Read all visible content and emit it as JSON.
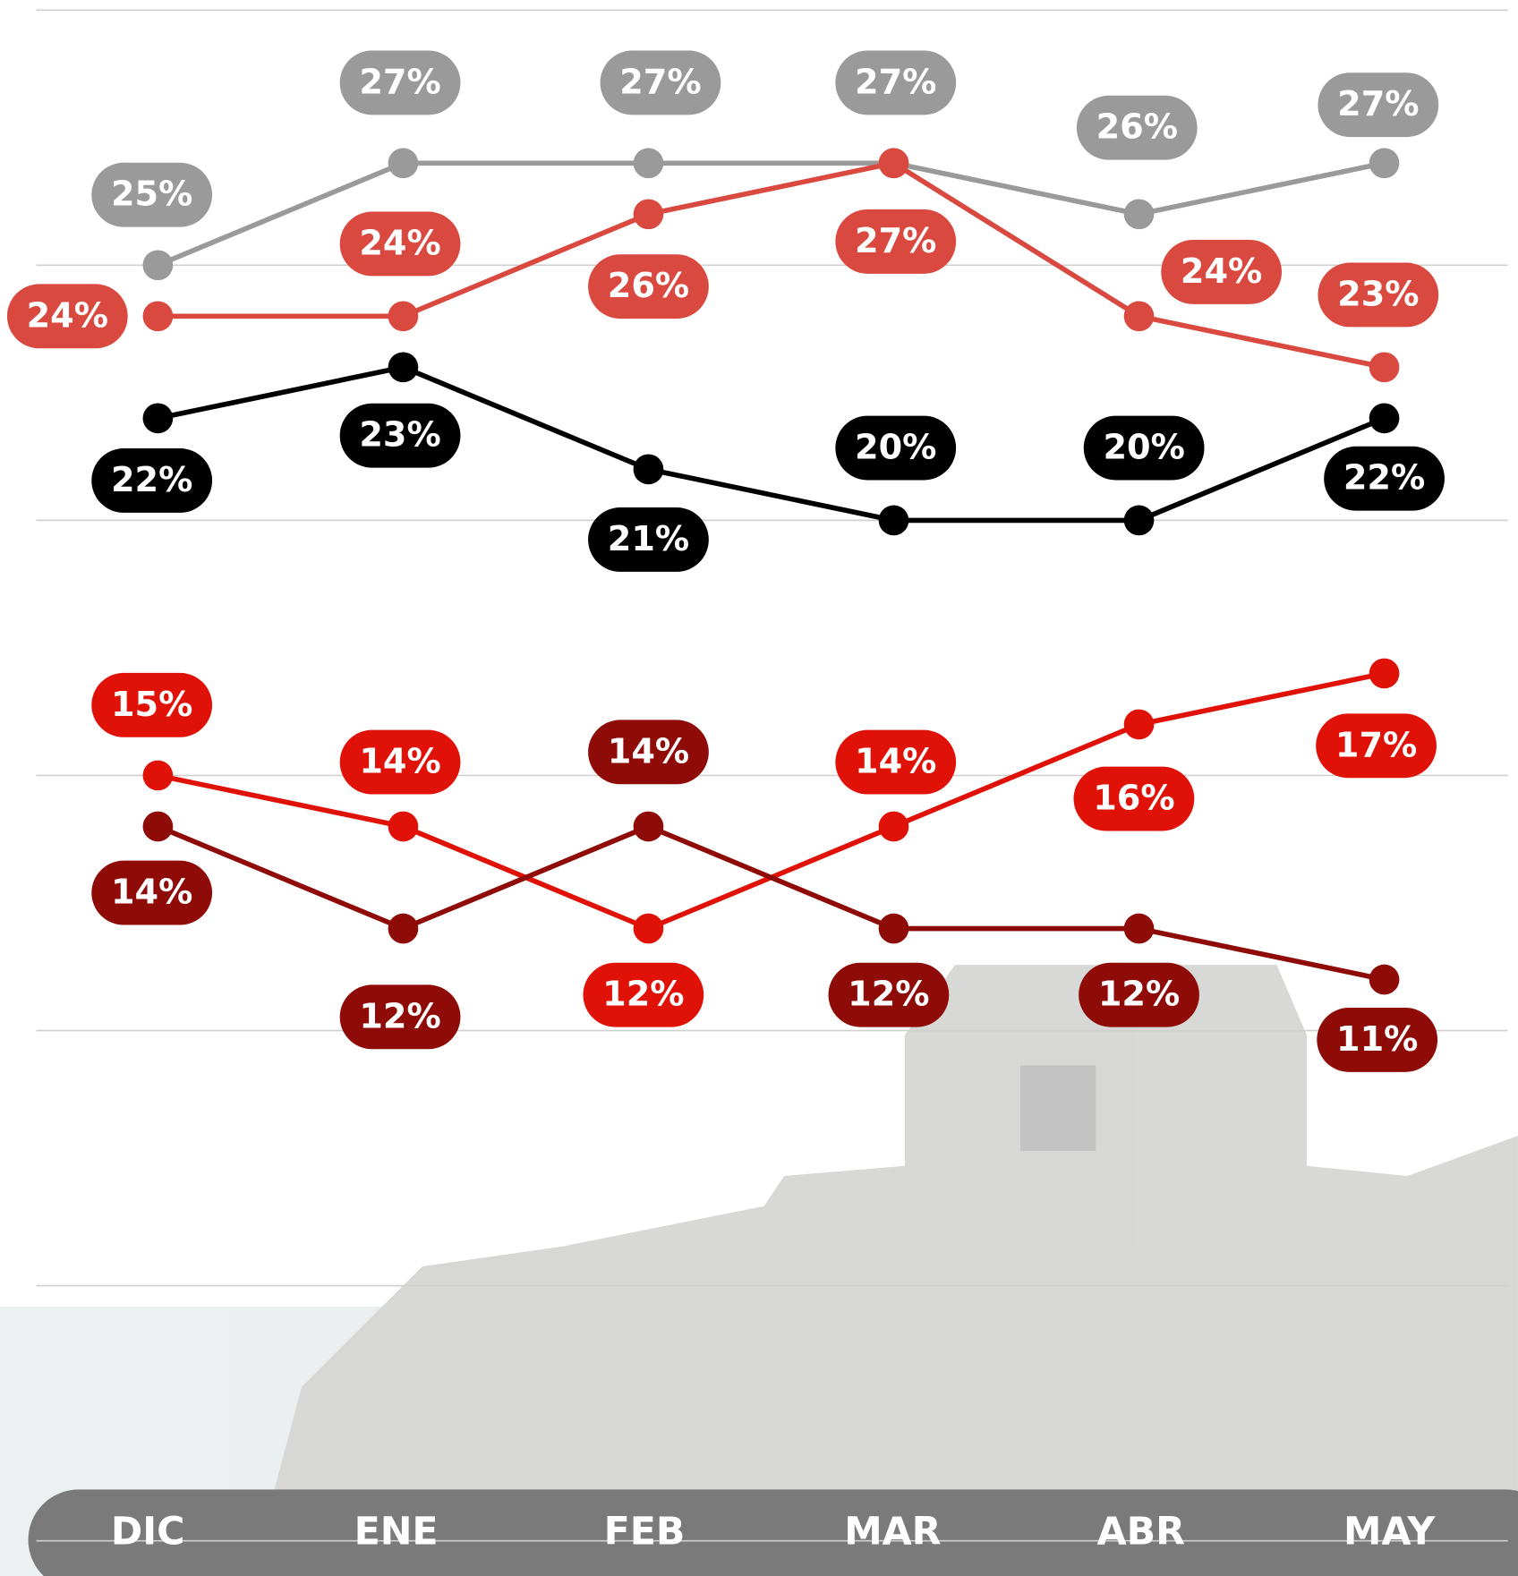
{
  "chart_data": {
    "type": "line",
    "categories": [
      "DIC",
      "ENE",
      "FEB",
      "MAR",
      "ABR",
      "MAY"
    ],
    "ylim": [
      0,
      30
    ],
    "yticks": [
      0,
      5,
      10,
      15,
      20,
      25,
      30
    ],
    "grid": true,
    "series": [
      {
        "color": "#9a9a9a",
        "values": [
          25,
          27,
          27,
          27,
          26,
          27
        ],
        "value_labels": [
          "25%",
          "27%",
          "27%",
          "27%",
          "26%",
          "27%"
        ]
      },
      {
        "color": "#d9493f",
        "values": [
          24,
          24,
          26,
          27,
          24,
          23
        ],
        "value_labels": [
          "24%",
          "24%",
          "26%",
          "27%",
          "24%",
          "23%"
        ]
      },
      {
        "color": "#000000",
        "values": [
          22,
          23,
          21,
          20,
          20,
          22
        ],
        "value_labels": [
          "22%",
          "23%",
          "21%",
          "20%",
          "20%",
          "22%"
        ]
      },
      {
        "color": "#e01208",
        "values": [
          15,
          14,
          12,
          14,
          16,
          17
        ],
        "value_labels": [
          "15%",
          "14%",
          "12%",
          "14%",
          "16%",
          "17%"
        ]
      },
      {
        "color": "#8e0b07",
        "values": [
          14,
          12,
          14,
          12,
          12,
          11
        ],
        "value_labels": [
          "14%",
          "12%",
          "14%",
          "12%",
          "12%",
          "11%"
        ]
      }
    ]
  }
}
